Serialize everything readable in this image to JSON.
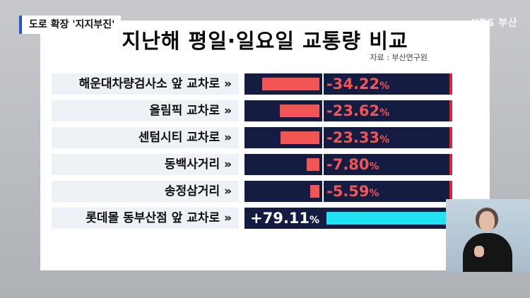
{
  "broadcast": {
    "caption": "도로 확장 '지지부진'",
    "broadcaster": "KBS 부산"
  },
  "graphic": {
    "title": "지난해 평일·일요일 교통량 비교",
    "source": "자료 : 부산연구원",
    "unit": "%",
    "rows": [
      {
        "label": "해운대차량검사소 앞 교차로 »",
        "value_text": "-34.22",
        "value": -34.22
      },
      {
        "label": "올림픽 교차로 »",
        "value_text": "-23.62",
        "value": -23.62
      },
      {
        "label": "센텀시티 교차로 »",
        "value_text": "-23.33",
        "value": -23.33
      },
      {
        "label": "동백사거리 »",
        "value_text": "-7.80",
        "value": -7.8
      },
      {
        "label": "송정삼거리 »",
        "value_text": "-5.59",
        "value": -5.59
      },
      {
        "label": "롯데몰 동부산점 앞 교차로 »",
        "value_text": "+79.11",
        "value": 79.11
      }
    ],
    "colors": {
      "negative": "#f35454",
      "positive": "#1fe3f2",
      "bar_background": "#141c42",
      "label_background": "#eef1f6"
    }
  },
  "interpreter": {
    "icon": "sign-language-interpreter"
  }
}
